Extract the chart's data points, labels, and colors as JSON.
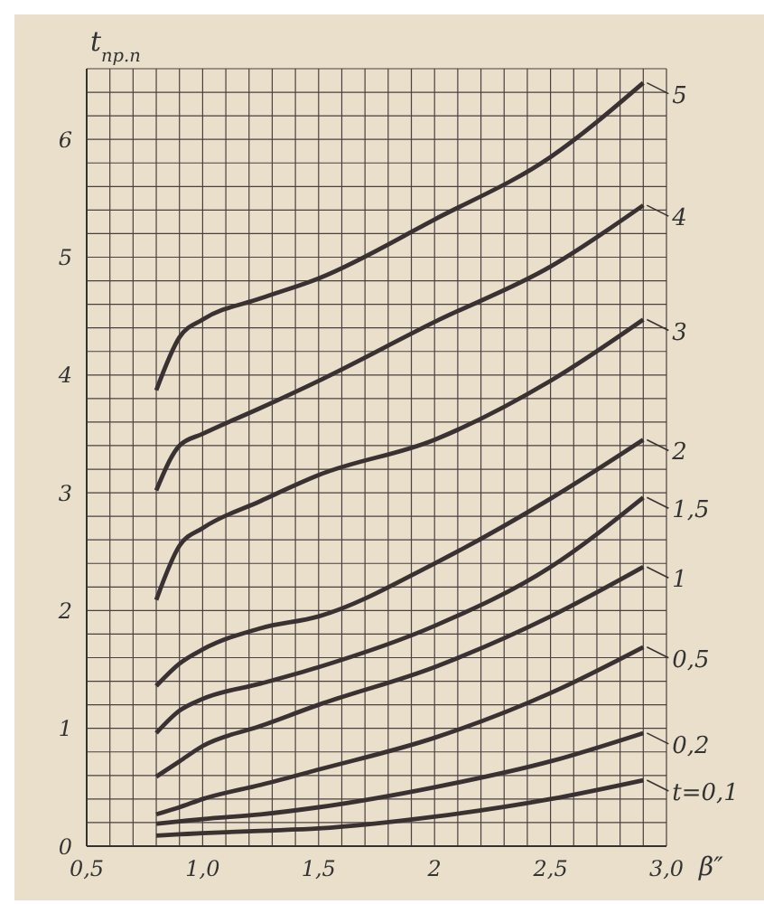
{
  "chart_data": {
    "type": "line",
    "xlabel": "β″",
    "ylabel": "t$_{пр.п}$",
    "xlim": [
      0.5,
      3.0
    ],
    "ylim": [
      0,
      6.6
    ],
    "xticks": [
      {
        "value": 0.5,
        "label": "0,5"
      },
      {
        "value": 0.6,
        "label": null
      },
      {
        "value": 0.7,
        "label": null
      },
      {
        "value": 0.8,
        "label": null
      },
      {
        "value": 0.9,
        "label": null
      },
      {
        "value": 1.0,
        "label": "1,0"
      },
      {
        "value": 1.1,
        "label": null
      },
      {
        "value": 1.2,
        "label": null
      },
      {
        "value": 1.3,
        "label": null
      },
      {
        "value": 1.4,
        "label": null
      },
      {
        "value": 1.5,
        "label": "1,5"
      },
      {
        "value": 1.6,
        "label": null
      },
      {
        "value": 1.7,
        "label": null
      },
      {
        "value": 1.8,
        "label": null
      },
      {
        "value": 1.9,
        "label": null
      },
      2,
      {
        "value": 2.1,
        "label": null
      },
      {
        "value": 2.2,
        "label": null
      },
      {
        "value": 2.3,
        "label": null
      },
      {
        "value": 2.4,
        "label": null
      },
      {
        "value": 2.5,
        "label": "2,5"
      },
      {
        "value": 2.6,
        "label": null
      },
      {
        "value": 2.7,
        "label": null
      },
      {
        "value": 2.8,
        "label": null
      },
      {
        "value": 2.9,
        "label": null
      },
      {
        "value": 3.0,
        "label": "3,0"
      }
    ],
    "yticks": [
      0,
      {
        "value": 0.2,
        "label": null
      },
      {
        "value": 0.4,
        "label": null
      },
      {
        "value": 0.6,
        "label": null
      },
      {
        "value": 0.8,
        "label": null
      },
      1,
      {
        "value": 1.2,
        "label": null
      },
      {
        "value": 1.4,
        "label": null
      },
      {
        "value": 1.6,
        "label": null
      },
      {
        "value": 1.8,
        "label": null
      },
      2,
      {
        "value": 2.2,
        "label": null
      },
      {
        "value": 2.4,
        "label": null
      },
      {
        "value": 2.6,
        "label": null
      },
      {
        "value": 2.8,
        "label": null
      },
      3,
      {
        "value": 3.2,
        "label": null
      },
      {
        "value": 3.4,
        "label": null
      },
      {
        "value": 3.6,
        "label": null
      },
      {
        "value": 3.8,
        "label": null
      },
      4,
      {
        "value": 4.2,
        "label": null
      },
      {
        "value": 4.4,
        "label": null
      },
      {
        "value": 4.6,
        "label": null
      },
      {
        "value": 4.8,
        "label": null
      },
      5,
      {
        "value": 5.2,
        "label": null
      },
      {
        "value": 5.4,
        "label": null
      },
      {
        "value": 5.6,
        "label": null
      },
      {
        "value": 5.8,
        "label": null
      },
      6,
      {
        "value": 6.2,
        "label": null
      },
      {
        "value": 6.4,
        "label": null
      }
    ],
    "grid": true,
    "marker": "none",
    "line_style": "solid",
    "legend": "right",
    "x": [
      0.8,
      0.9,
      1.0,
      1.25,
      1.5,
      2.0,
      2.5,
      2.9
    ],
    "series": [
      {
        "name": "5",
        "color": "#3a3232",
        "values": [
          3.87,
          4.32,
          4.47,
          4.65,
          4.82,
          5.32,
          5.85,
          6.48
        ]
      },
      {
        "name": "4",
        "color": "#3a3232",
        "values": [
          3.02,
          3.4,
          3.5,
          3.72,
          3.95,
          4.45,
          4.92,
          5.44
        ]
      },
      {
        "name": "3",
        "color": "#3a3232",
        "values": [
          2.09,
          2.55,
          2.7,
          2.93,
          3.15,
          3.45,
          3.95,
          4.47
        ]
      },
      {
        "name": "2",
        "color": "#3a3232",
        "values": [
          1.36,
          1.55,
          1.67,
          1.85,
          1.95,
          2.4,
          2.95,
          3.45
        ]
      },
      {
        "name": "1,5",
        "color": "#3a3232",
        "values": [
          0.96,
          1.15,
          1.25,
          1.38,
          1.52,
          1.87,
          2.37,
          2.96
        ]
      },
      {
        "name": "1",
        "color": "#3a3232",
        "values": [
          0.59,
          0.72,
          0.85,
          1.02,
          1.2,
          1.52,
          1.95,
          2.37
        ]
      },
      {
        "name": "0,5",
        "color": "#3a3232",
        "values": [
          0.27,
          0.33,
          0.4,
          0.52,
          0.65,
          0.92,
          1.3,
          1.69
        ]
      },
      {
        "name": "0,2",
        "color": "#3a3232",
        "values": [
          0.19,
          0.21,
          0.23,
          0.27,
          0.33,
          0.5,
          0.72,
          0.96
        ]
      },
      {
        "name": "t=0,1",
        "color": "#3a3232",
        "values": [
          0.09,
          0.1,
          0.11,
          0.13,
          0.15,
          0.25,
          0.4,
          0.56
        ]
      }
    ]
  }
}
